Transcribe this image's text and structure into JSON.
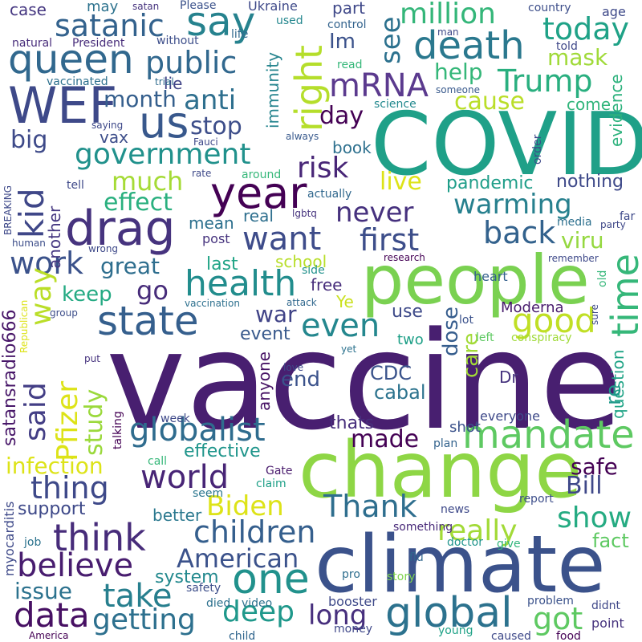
{
  "words": [
    {
      "text": "vaccine",
      "color": "#481f70"
    },
    {
      "text": "COVID",
      "color": "#1fa088"
    },
    {
      "text": "change",
      "color": "#8ed645"
    },
    {
      "text": "climate",
      "color": "#3b528b"
    },
    {
      "text": "people",
      "color": "#7ad151"
    },
    {
      "text": "year",
      "color": "#440154"
    },
    {
      "text": "WEF",
      "color": "#3e4989"
    },
    {
      "text": "queen",
      "color": "#31688e"
    },
    {
      "text": "death",
      "color": "#2a788e"
    },
    {
      "text": "drag",
      "color": "#46337e"
    },
    {
      "text": "global",
      "color": "#2c728e"
    },
    {
      "text": "mandate",
      "color": "#5ec962"
    },
    {
      "text": "one",
      "color": "#21918c"
    },
    {
      "text": "us",
      "color": "#38588c"
    },
    {
      "text": "time",
      "color": "#35b779"
    },
    {
      "text": "say",
      "color": "#26828e"
    },
    {
      "text": "state",
      "color": "#355f8d"
    },
    {
      "text": "think",
      "color": "#472c7a"
    },
    {
      "text": "right",
      "color": "#b5de2b"
    },
    {
      "text": "health",
      "color": "#228d8d"
    },
    {
      "text": "million",
      "color": "#34b679"
    },
    {
      "text": "public",
      "color": "#31688e"
    },
    {
      "text": "government",
      "color": "#21918c"
    },
    {
      "text": "Trump",
      "color": "#29af7f"
    },
    {
      "text": "mRNA",
      "color": "#5b3a8e"
    },
    {
      "text": "kid",
      "color": "#3f4788"
    },
    {
      "text": "work",
      "color": "#3b528b"
    },
    {
      "text": "want",
      "color": "#3e4c8a"
    },
    {
      "text": "first",
      "color": "#3d4e8a"
    },
    {
      "text": "back",
      "color": "#33628d"
    },
    {
      "text": "even",
      "color": "#24878e"
    },
    {
      "text": "good",
      "color": "#c0df25"
    },
    {
      "text": "globalist",
      "color": "#2f6c8e"
    },
    {
      "text": "children",
      "color": "#355f8d"
    },
    {
      "text": "Thank",
      "color": "#2e6e8e"
    },
    {
      "text": "world",
      "color": "#482576"
    },
    {
      "text": "thing",
      "color": "#3e4989"
    },
    {
      "text": "take",
      "color": "#277f8e"
    },
    {
      "text": "believe",
      "color": "#481d6f"
    },
    {
      "text": "data",
      "color": "#471063"
    },
    {
      "text": "getting",
      "color": "#2d708e"
    },
    {
      "text": "deep",
      "color": "#1f988b"
    },
    {
      "text": "got",
      "color": "#5ec962"
    },
    {
      "text": "long",
      "color": "#472f7d"
    },
    {
      "text": "American",
      "color": "#3b528b"
    },
    {
      "text": "Biden",
      "color": "#dde318"
    },
    {
      "text": "Pfizer",
      "color": "#dde318"
    },
    {
      "text": "said",
      "color": "#433e85"
    },
    {
      "text": "way",
      "color": "#bade28"
    },
    {
      "text": "made",
      "color": "#440154"
    },
    {
      "text": "show",
      "color": "#25ab82"
    },
    {
      "text": "really",
      "color": "#a2da37"
    },
    {
      "text": "safe",
      "color": "#440154"
    },
    {
      "text": "Bill",
      "color": "#3f4889"
    },
    {
      "text": "warming",
      "color": "#27808e"
    },
    {
      "text": "never",
      "color": "#46317e"
    },
    {
      "text": "risk",
      "color": "#482677"
    },
    {
      "text": "anti",
      "color": "#2e6f8e"
    },
    {
      "text": "satanic",
      "color": "#33628d"
    },
    {
      "text": "see",
      "color": "#2c718e"
    },
    {
      "text": "today",
      "color": "#1fa287"
    },
    {
      "text": "help",
      "color": "#35b779"
    },
    {
      "text": "cause",
      "color": "#bade28"
    },
    {
      "text": "stop",
      "color": "#3d4e8a"
    },
    {
      "text": "big",
      "color": "#3e4a89"
    },
    {
      "text": "much",
      "color": "#a5db36"
    },
    {
      "text": "effect",
      "color": "#2ab07f"
    },
    {
      "text": "live",
      "color": "#dde318"
    },
    {
      "text": "go",
      "color": "#472c7a"
    },
    {
      "text": "infection",
      "color": "#dde318"
    },
    {
      "text": "study",
      "color": "#9bd93c"
    },
    {
      "text": "viru",
      "color": "#95d840"
    },
    {
      "text": "mask",
      "color": "#a0da39"
    },
    {
      "text": "day",
      "color": "#440154"
    },
    {
      "text": "month",
      "color": "#355f8d"
    },
    {
      "text": "great",
      "color": "#2e6e8e"
    },
    {
      "text": "keep",
      "color": "#24aa83"
    },
    {
      "text": "question",
      "color": "#20a486"
    },
    {
      "text": "pandemic",
      "color": "#1f9e89"
    },
    {
      "text": "issue",
      "color": "#2c728e"
    },
    {
      "text": "system",
      "color": "#23898e"
    },
    {
      "text": "end",
      "color": "#3b528b"
    },
    {
      "text": "war",
      "color": "#404387"
    },
    {
      "text": "CDC",
      "color": "#3a538b"
    },
    {
      "text": "cabal",
      "color": "#2c738e"
    },
    {
      "text": "care",
      "color": "#a2da37"
    },
    {
      "text": "dose",
      "color": "#365d8d"
    },
    {
      "text": "re",
      "color": "#1f998a"
    },
    {
      "text": "fact",
      "color": "#5ec962"
    },
    {
      "text": "effective",
      "color": "#1f958b"
    },
    {
      "text": "support",
      "color": "#3e4989"
    },
    {
      "text": "better",
      "color": "#2a788e"
    },
    {
      "text": "last",
      "color": "#20a486"
    },
    {
      "text": "mean",
      "color": "#2d708e"
    },
    {
      "text": "real",
      "color": "#2e6f8e"
    },
    {
      "text": "school",
      "color": "#b8de29"
    },
    {
      "text": "free",
      "color": "#472d7b"
    },
    {
      "text": "Ye",
      "color": "#cae11f"
    },
    {
      "text": "event",
      "color": "#38598c"
    },
    {
      "text": "use",
      "color": "#3e4a89"
    },
    {
      "text": "anyone",
      "color": "#471365"
    },
    {
      "text": "thats",
      "color": "#472e7c"
    },
    {
      "text": "Moderna",
      "color": "#481b6d"
    },
    {
      "text": "shot",
      "color": "#3b528b"
    },
    {
      "text": "everyone",
      "color": "#3e4989"
    },
    {
      "text": "nothing",
      "color": "#3e4989"
    },
    {
      "text": "satansradio666",
      "color": "#481769"
    },
    {
      "text": "immunity",
      "color": "#25848e"
    },
    {
      "text": "evidence",
      "color": "#2db27d"
    },
    {
      "text": "vax",
      "color": "#3d4e8a"
    },
    {
      "text": "another",
      "color": "#453781"
    },
    {
      "text": "book",
      "color": "#2d708e"
    },
    {
      "text": "come",
      "color": "#31b57b"
    },
    {
      "text": "part",
      "color": "#3f4889"
    },
    {
      "text": "lie",
      "color": "#404387"
    },
    {
      "text": "case",
      "color": "#453781"
    },
    {
      "text": "may",
      "color": "#2c728e"
    },
    {
      "text": "Im",
      "color": "#3b528b"
    },
    {
      "text": "post",
      "color": "#46337e"
    },
    {
      "text": "heart",
      "color": "#34618d"
    },
    {
      "text": "two",
      "color": "#1fa088"
    },
    {
      "text": "Dr",
      "color": "#46337e"
    },
    {
      "text": "talking",
      "color": "#440154"
    },
    {
      "text": "week",
      "color": "#3e4989"
    },
    {
      "text": "plan",
      "color": "#33638d"
    },
    {
      "text": "Gate",
      "color": "#481a6c"
    },
    {
      "text": "claim",
      "color": "#1fa088"
    },
    {
      "text": "news",
      "color": "#3e4989"
    },
    {
      "text": "report",
      "color": "#3d4e8a"
    },
    {
      "text": "doctor",
      "color": "#1f948c"
    },
    {
      "text": "give",
      "color": "#31b57b"
    },
    {
      "text": "flu",
      "color": "#31668e"
    },
    {
      "text": "something",
      "color": "#472878"
    },
    {
      "text": "myocarditis",
      "color": "#3e4989"
    },
    {
      "text": "job",
      "color": "#2c738e"
    },
    {
      "text": "seem",
      "color": "#2a768e"
    },
    {
      "text": "call",
      "color": "#35b779"
    },
    {
      "text": "pro",
      "color": "#2e6e8e"
    },
    {
      "text": "story",
      "color": "#7fd34e"
    },
    {
      "text": "safety",
      "color": "#3d4e8a"
    },
    {
      "text": "booster",
      "color": "#3e4989"
    },
    {
      "text": "problem",
      "color": "#3b528b"
    },
    {
      "text": "didnt",
      "color": "#3f4889"
    },
    {
      "text": "point",
      "color": "#46337e"
    },
    {
      "text": "died",
      "color": "#2c718e"
    },
    {
      "text": "video",
      "color": "#2c718e"
    },
    {
      "text": "money",
      "color": "#3f4889"
    },
    {
      "text": "young",
      "color": "#1fa287"
    },
    {
      "text": "caused",
      "color": "#3e4989"
    },
    {
      "text": "food",
      "color": "#440154"
    },
    {
      "text": "America",
      "color": "#440154"
    },
    {
      "text": "child",
      "color": "#31668e"
    },
    {
      "text": "satan",
      "color": "#46337e"
    },
    {
      "text": "Please",
      "color": "#3b528b"
    },
    {
      "text": "Ukraine",
      "color": "#3e4989"
    },
    {
      "text": "used",
      "color": "#24878e"
    },
    {
      "text": "control",
      "color": "#33638d"
    },
    {
      "text": "country",
      "color": "#3d4e8a"
    },
    {
      "text": "age",
      "color": "#3e4989"
    },
    {
      "text": "man",
      "color": "#3e4989"
    },
    {
      "text": "told",
      "color": "#3f4889"
    },
    {
      "text": "natural",
      "color": "#472c7a"
    },
    {
      "text": "President",
      "color": "#472c7a"
    },
    {
      "text": "without",
      "color": "#3d4e8a"
    },
    {
      "text": "life",
      "color": "#31688e"
    },
    {
      "text": "read",
      "color": "#35b779"
    },
    {
      "text": "vaccinated",
      "color": "#2d708e"
    },
    {
      "text": "trial",
      "color": "#2f6c8e"
    },
    {
      "text": "someone",
      "color": "#38598c"
    },
    {
      "text": "science",
      "color": "#23898e"
    },
    {
      "text": "saying",
      "color": "#3e4989"
    },
    {
      "text": "Fauci",
      "color": "#3f4889"
    },
    {
      "text": "always",
      "color": "#38598c"
    },
    {
      "text": "order",
      "color": "#3e4989"
    },
    {
      "text": "BREAKING",
      "color": "#3e4989"
    },
    {
      "text": "tell",
      "color": "#3e4989"
    },
    {
      "text": "rate",
      "color": "#3e4989"
    },
    {
      "text": "around",
      "color": "#35b779"
    },
    {
      "text": "actually",
      "color": "#31688e"
    },
    {
      "text": "lgbtq",
      "color": "#46337e"
    },
    {
      "text": "human",
      "color": "#3d4e8a"
    },
    {
      "text": "wrong",
      "color": "#3e4989"
    },
    {
      "text": "media",
      "color": "#2d708e"
    },
    {
      "text": "far",
      "color": "#3e4989"
    },
    {
      "text": "party",
      "color": "#3f4889"
    },
    {
      "text": "research",
      "color": "#440154"
    },
    {
      "text": "remember",
      "color": "#3e4989"
    },
    {
      "text": "side",
      "color": "#21918c"
    },
    {
      "text": "old",
      "color": "#35b779"
    },
    {
      "text": "sure",
      "color": "#3e4989"
    },
    {
      "text": "group",
      "color": "#3d4e8a"
    },
    {
      "text": "attack",
      "color": "#31688e"
    },
    {
      "text": "vaccination",
      "color": "#2d708e"
    },
    {
      "text": "Republican",
      "color": "#dde318"
    },
    {
      "text": "lot",
      "color": "#3b528b"
    },
    {
      "text": "left",
      "color": "#5ec962"
    },
    {
      "text": "conspiracy",
      "color": "#a0da39"
    },
    {
      "text": "put",
      "color": "#46337e"
    },
    {
      "text": "love",
      "color": "#3f4889"
    },
    {
      "text": "yet",
      "color": "#2c728e"
    }
  ]
}
